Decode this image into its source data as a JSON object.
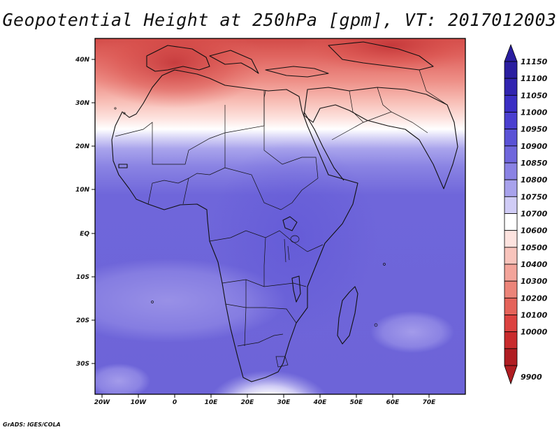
{
  "title": "Geopotential Height at 250hPa [gpm], VT: 2017012003",
  "credit": "GrADS: IGES/COLA",
  "map": {
    "region": "Africa and surrounding oceans",
    "lat_labels": [
      "40N",
      "30N",
      "20N",
      "10N",
      "EQ",
      "10S",
      "20S",
      "30S"
    ],
    "lon_labels": [
      "20W",
      "10W",
      "0",
      "10E",
      "20E",
      "30E",
      "40E",
      "50E",
      "60E",
      "70E"
    ]
  },
  "colorbar": {
    "levels": [
      "11150",
      "11100",
      "11050",
      "11000",
      "10950",
      "10900",
      "10850",
      "10800",
      "10750",
      "10700",
      "10600",
      "10500",
      "10400",
      "10300",
      "10200",
      "10100",
      "10000",
      "9900"
    ],
    "colors": [
      "#2a1ea0",
      "#3124b0",
      "#3a2ec4",
      "#4a3fd0",
      "#5a52d6",
      "#6f66dc",
      "#8a82e4",
      "#a8a2ec",
      "#d0ccf6",
      "#ffffff",
      "#fde3df",
      "#f8c4bc",
      "#f3a49a",
      "#ec8479",
      "#e5635a",
      "#dc4240",
      "#c92b2d",
      "#b01d22"
    ]
  }
}
